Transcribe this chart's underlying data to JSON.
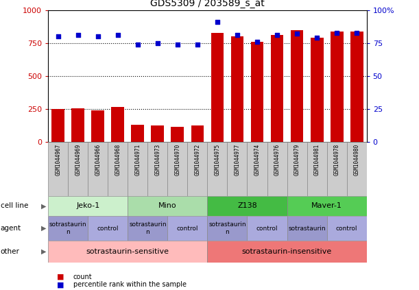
{
  "title": "GDS5309 / 203589_s_at",
  "samples": [
    "GSM1044967",
    "GSM1044969",
    "GSM1044966",
    "GSM1044968",
    "GSM1044971",
    "GSM1044973",
    "GSM1044970",
    "GSM1044972",
    "GSM1044975",
    "GSM1044977",
    "GSM1044974",
    "GSM1044976",
    "GSM1044979",
    "GSM1044981",
    "GSM1044978",
    "GSM1044980"
  ],
  "counts": [
    250,
    258,
    240,
    265,
    130,
    128,
    118,
    128,
    830,
    800,
    760,
    810,
    850,
    790,
    840,
    840
  ],
  "percentiles": [
    80,
    81,
    80,
    81,
    74,
    75,
    74,
    74,
    91,
    81,
    76,
    81,
    82,
    79,
    83,
    83
  ],
  "cell_lines": [
    {
      "label": "Jeko-1",
      "start": 0,
      "end": 4,
      "color": "#ccf0cc"
    },
    {
      "label": "Mino",
      "start": 4,
      "end": 8,
      "color": "#aaddaa"
    },
    {
      "label": "Z138",
      "start": 8,
      "end": 12,
      "color": "#44bb44"
    },
    {
      "label": "Maver-1",
      "start": 12,
      "end": 16,
      "color": "#55cc55"
    }
  ],
  "agents": [
    {
      "label": "sotrastaurin\nn",
      "start": 0,
      "end": 2,
      "color": "#9999cc"
    },
    {
      "label": "control",
      "start": 2,
      "end": 4,
      "color": "#aaaadd"
    },
    {
      "label": "sotrastaurin\nn",
      "start": 4,
      "end": 6,
      "color": "#9999cc"
    },
    {
      "label": "control",
      "start": 6,
      "end": 8,
      "color": "#aaaadd"
    },
    {
      "label": "sotrastaurin\nn",
      "start": 8,
      "end": 10,
      "color": "#9999cc"
    },
    {
      "label": "control",
      "start": 10,
      "end": 12,
      "color": "#aaaadd"
    },
    {
      "label": "sotrastaurin",
      "start": 12,
      "end": 14,
      "color": "#9999cc"
    },
    {
      "label": "control",
      "start": 14,
      "end": 16,
      "color": "#aaaadd"
    }
  ],
  "others": [
    {
      "label": "sotrastaurin-sensitive",
      "start": 0,
      "end": 8,
      "color": "#ffbbbb"
    },
    {
      "label": "sotrastaurin-insensitive",
      "start": 8,
      "end": 16,
      "color": "#ee7777"
    }
  ],
  "bar_color": "#cc0000",
  "dot_color": "#0000cc",
  "ylim_left": [
    0,
    1000
  ],
  "ylim_right": [
    0,
    100
  ],
  "yticks_left": [
    0,
    250,
    500,
    750,
    1000
  ],
  "ytick_labels_left": [
    "0",
    "250",
    "500",
    "750",
    "1000"
  ],
  "yticks_right": [
    0,
    25,
    50,
    75,
    100
  ],
  "ytick_labels_right": [
    "0",
    "25",
    "50",
    "75",
    "100%"
  ],
  "hlines": [
    250,
    500,
    750
  ],
  "legend_count_label": "count",
  "legend_pct_label": "percentile rank within the sample"
}
